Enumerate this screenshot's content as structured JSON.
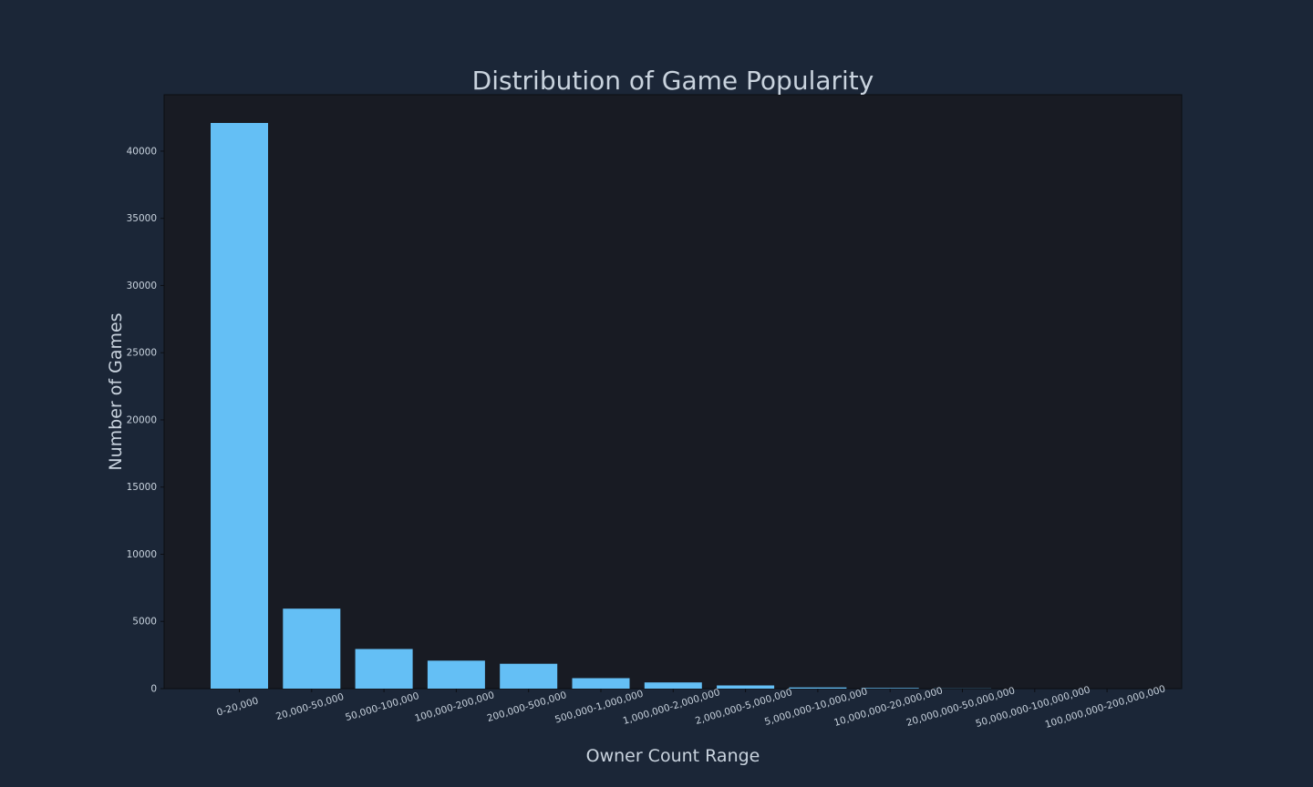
{
  "colors": {
    "page_background": "#1b2637",
    "plot_background": "#181b23",
    "bar": "#64bff5",
    "text": "#c9d3de",
    "tick_text": "#c9d3de"
  },
  "chart_data": {
    "type": "bar",
    "title": "Distribution of Game Popularity",
    "xlabel": "Owner Count Range",
    "ylabel": "Number of Games",
    "categories": [
      "0-20,000",
      "20,000-50,000",
      "50,000-100,000",
      "100,000-200,000",
      "200,000-500,000",
      "500,000-1,000,000",
      "1,000,000-2,000,000",
      "2,000,000-5,000,000",
      "5,000,000-10,000,000",
      "10,000,000-20,000,000",
      "20,000,000-50,000,000",
      "50,000,000-100,000,000",
      "100,000,000-200,000,000"
    ],
    "values": [
      42100,
      5950,
      2950,
      2080,
      1850,
      780,
      460,
      240,
      85,
      45,
      12,
      3,
      1
    ],
    "ylim": [
      0,
      44200
    ],
    "yticks": [
      0,
      5000,
      10000,
      15000,
      20000,
      25000,
      30000,
      35000,
      40000
    ],
    "grid": false,
    "legend": "none"
  }
}
